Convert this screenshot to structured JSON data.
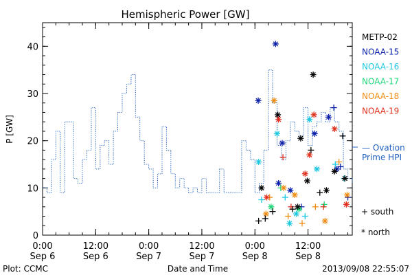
{
  "chart_data": {
    "type": "line",
    "title": "Hemispheric Power [GW]",
    "ylabel": "P [GW]",
    "xlabel": "Date and Time",
    "ylim": [
      0,
      45
    ],
    "yticks": [
      0,
      10,
      20,
      30,
      40
    ],
    "xlim": [
      "2013-09-06 00:00",
      "2013-09-08 22:00"
    ],
    "xticks": [
      {
        "x": "2013-09-06 00:00",
        "time": "0:00",
        "date": "Sep 6"
      },
      {
        "x": "2013-09-06 12:00",
        "time": "12:00",
        "date": "Sep 6"
      },
      {
        "x": "2013-09-07 00:00",
        "time": "0:00",
        "date": "Sep 7"
      },
      {
        "x": "2013-09-07 12:00",
        "time": "12:00",
        "date": "Sep 7"
      },
      {
        "x": "2013-09-08 00:00",
        "time": "0:00",
        "date": "Sep 8"
      },
      {
        "x": "2013-09-08 12:00",
        "time": "12:00",
        "date": "Sep 8"
      }
    ],
    "ovation": {
      "name": "Ovation Prime HPI",
      "legend_line1": "— Ovation",
      "legend_line2": "Prime HPI",
      "color": "#1f5fbf",
      "x": [
        "2013-09-06 00:00",
        "2013-09-06 01:00",
        "2013-09-06 02:00",
        "2013-09-06 03:00",
        "2013-09-06 04:00",
        "2013-09-06 05:00",
        "2013-09-06 06:00",
        "2013-09-06 07:00",
        "2013-09-06 08:00",
        "2013-09-06 09:00",
        "2013-09-06 10:00",
        "2013-09-06 11:00",
        "2013-09-06 12:00",
        "2013-09-06 13:00",
        "2013-09-06 14:00",
        "2013-09-06 15:00",
        "2013-09-06 16:00",
        "2013-09-06 17:00",
        "2013-09-06 18:00",
        "2013-09-06 19:00",
        "2013-09-06 20:00",
        "2013-09-06 21:00",
        "2013-09-06 22:00",
        "2013-09-06 23:00",
        "2013-09-07 00:00",
        "2013-09-07 01:00",
        "2013-09-07 02:00",
        "2013-09-07 03:00",
        "2013-09-07 04:00",
        "2013-09-07 05:00",
        "2013-09-07 06:00",
        "2013-09-07 07:00",
        "2013-09-07 08:00",
        "2013-09-07 09:00",
        "2013-09-07 10:00",
        "2013-09-07 11:00",
        "2013-09-07 12:00",
        "2013-09-07 13:00",
        "2013-09-07 14:00",
        "2013-09-07 15:00",
        "2013-09-07 16:00",
        "2013-09-07 17:00",
        "2013-09-07 18:00",
        "2013-09-07 19:00",
        "2013-09-07 20:00",
        "2013-09-07 21:00",
        "2013-09-07 22:00",
        "2013-09-07 23:00",
        "2013-09-08 00:00",
        "2013-09-08 01:00",
        "2013-09-08 02:00",
        "2013-09-08 03:00",
        "2013-09-08 04:00",
        "2013-09-08 05:00",
        "2013-09-08 06:00",
        "2013-09-08 07:00",
        "2013-09-08 08:00",
        "2013-09-08 09:00",
        "2013-09-08 10:00",
        "2013-09-08 11:00",
        "2013-09-08 12:00",
        "2013-09-08 13:00",
        "2013-09-08 14:00",
        "2013-09-08 15:00",
        "2013-09-08 16:00",
        "2013-09-08 17:00",
        "2013-09-08 18:00",
        "2013-09-08 19:00",
        "2013-09-08 20:00",
        "2013-09-08 21:00",
        "2013-09-08 22:00"
      ],
      "y": [
        10,
        9,
        16,
        22,
        9,
        24,
        24,
        12,
        11,
        16,
        18,
        27,
        14,
        19,
        20,
        15,
        22,
        26,
        30,
        32,
        34,
        25,
        20,
        15,
        14,
        10,
        13,
        23,
        18,
        13,
        10,
        12,
        10,
        9,
        10,
        9,
        12,
        9,
        9,
        9,
        14,
        9,
        9,
        9,
        9,
        20,
        18,
        16,
        9,
        11,
        18,
        35,
        28,
        19,
        16,
        20,
        24,
        22,
        21,
        27,
        19,
        23,
        24,
        26,
        24,
        27,
        24,
        22,
        14,
        12,
        11
      ]
    },
    "satellites": [
      {
        "name": "METP-02",
        "color": "#000000"
      },
      {
        "name": "NOAA-15",
        "color": "#0a1ea8"
      },
      {
        "name": "NOAA-16",
        "color": "#1ec8e0"
      },
      {
        "name": "NOAA-17",
        "color": "#1fd67a"
      },
      {
        "name": "NOAA-18",
        "color": "#f08c12"
      },
      {
        "name": "NOAA-19",
        "color": "#e0301e"
      }
    ],
    "symbols": {
      "south": "+ south",
      "north": "* north"
    },
    "points": [
      {
        "sat": "NOAA-15",
        "hemi": "north",
        "x": "2013-09-08 00:45",
        "y": 28.5
      },
      {
        "sat": "NOAA-15",
        "hemi": "north",
        "x": "2013-09-08 04:40",
        "y": 40.5
      },
      {
        "sat": "NOAA-15",
        "hemi": "north",
        "x": "2013-09-08 06:10",
        "y": 19.5
      },
      {
        "sat": "NOAA-15",
        "hemi": "north",
        "x": "2013-09-08 05:20",
        "y": 11.0
      },
      {
        "sat": "NOAA-15",
        "hemi": "north",
        "x": "2013-09-08 08:00",
        "y": 9.5
      },
      {
        "sat": "NOAA-15",
        "hemi": "north",
        "x": "2013-09-08 13:30",
        "y": 21.5
      },
      {
        "sat": "NOAA-15",
        "hemi": "north",
        "x": "2013-09-08 16:40",
        "y": 25.0
      },
      {
        "sat": "NOAA-15",
        "hemi": "north",
        "x": "2013-09-08 18:30",
        "y": 14.0
      },
      {
        "sat": "NOAA-15",
        "hemi": "south",
        "x": "2013-09-08 17:50",
        "y": 27.0
      },
      {
        "sat": "NOAA-15",
        "hemi": "south",
        "x": "2013-09-08 19:20",
        "y": 14.5
      },
      {
        "sat": "NOAA-15",
        "hemi": "south",
        "x": "2013-09-08 10:30",
        "y": 6.0
      },
      {
        "sat": "NOAA-15",
        "hemi": "south",
        "x": "2013-09-08 21:00",
        "y": 8.0
      },
      {
        "sat": "NOAA-16",
        "hemi": "north",
        "x": "2013-09-08 00:50",
        "y": 15.5
      },
      {
        "sat": "NOAA-16",
        "hemi": "north",
        "x": "2013-09-08 05:00",
        "y": 21.5
      },
      {
        "sat": "NOAA-16",
        "hemi": "north",
        "x": "2013-09-08 12:20",
        "y": 24.5
      },
      {
        "sat": "NOAA-16",
        "hemi": "north",
        "x": "2013-09-08 14:00",
        "y": 14.0
      },
      {
        "sat": "NOAA-16",
        "hemi": "north",
        "x": "2013-09-08 07:50",
        "y": 2.5
      },
      {
        "sat": "NOAA-16",
        "hemi": "north",
        "x": "2013-09-08 09:20",
        "y": 4.5
      },
      {
        "sat": "NOAA-16",
        "hemi": "south",
        "x": "2013-09-08 01:30",
        "y": 7.5
      },
      {
        "sat": "NOAA-16",
        "hemi": "south",
        "x": "2013-09-08 06:50",
        "y": 8.0
      },
      {
        "sat": "NOAA-16",
        "hemi": "south",
        "x": "2013-09-08 11:20",
        "y": 4.0
      },
      {
        "sat": "NOAA-16",
        "hemi": "south",
        "x": "2013-09-08 18:10",
        "y": 15.0
      },
      {
        "sat": "NOAA-16",
        "hemi": "south",
        "x": "2013-09-08 20:10",
        "y": 12.0
      },
      {
        "sat": "NOAA-17",
        "hemi": "north",
        "x": "2013-09-08 03:40",
        "y": 6.0
      },
      {
        "sat": "NOAA-17",
        "hemi": "north",
        "x": "2013-09-08 10:00",
        "y": 5.5
      },
      {
        "sat": "NOAA-17",
        "hemi": "south",
        "x": "2013-09-08 05:50",
        "y": 10.0
      },
      {
        "sat": "NOAA-17",
        "hemi": "south",
        "x": "2013-09-08 15:40",
        "y": 6.5
      },
      {
        "sat": "NOAA-18",
        "hemi": "north",
        "x": "2013-09-08 04:20",
        "y": 28.5
      },
      {
        "sat": "NOAA-18",
        "hemi": "north",
        "x": "2013-09-08 02:30",
        "y": 4.5
      },
      {
        "sat": "NOAA-18",
        "hemi": "north",
        "x": "2013-09-08 06:30",
        "y": 10.0
      },
      {
        "sat": "NOAA-18",
        "hemi": "north",
        "x": "2013-09-08 09:00",
        "y": 8.5
      },
      {
        "sat": "NOAA-18",
        "hemi": "north",
        "x": "2013-09-08 15:50",
        "y": 3.0
      },
      {
        "sat": "NOAA-18",
        "hemi": "north",
        "x": "2013-09-08 20:50",
        "y": 8.5
      },
      {
        "sat": "NOAA-18",
        "hemi": "south",
        "x": "2013-09-08 03:20",
        "y": 8.0
      },
      {
        "sat": "NOAA-18",
        "hemi": "south",
        "x": "2013-09-08 07:30",
        "y": 4.0
      },
      {
        "sat": "NOAA-18",
        "hemi": "south",
        "x": "2013-09-08 10:40",
        "y": 2.5
      },
      {
        "sat": "NOAA-18",
        "hemi": "south",
        "x": "2013-09-08 13:40",
        "y": 6.0
      },
      {
        "sat": "NOAA-18",
        "hemi": "south",
        "x": "2013-09-08 19:00",
        "y": 15.5
      },
      {
        "sat": "NOAA-19",
        "hemi": "north",
        "x": "2013-09-08 05:20",
        "y": 24.5
      },
      {
        "sat": "NOAA-19",
        "hemi": "north",
        "x": "2013-09-08 13:20",
        "y": 25.5
      },
      {
        "sat": "NOAA-19",
        "hemi": "north",
        "x": "2013-09-08 11:20",
        "y": 13.0
      },
      {
        "sat": "NOAA-19",
        "hemi": "north",
        "x": "2013-09-08 12:20",
        "y": 17.0
      },
      {
        "sat": "NOAA-19",
        "hemi": "north",
        "x": "2013-09-08 18:00",
        "y": 22.5
      },
      {
        "sat": "NOAA-19",
        "hemi": "north",
        "x": "2013-09-08 20:40",
        "y": 6.5
      },
      {
        "sat": "NOAA-19",
        "hemi": "north",
        "x": "2013-09-08 02:40",
        "y": 8.0
      },
      {
        "sat": "NOAA-19",
        "hemi": "south",
        "x": "2013-09-08 06:20",
        "y": 16.5
      },
      {
        "sat": "NOAA-19",
        "hemi": "south",
        "x": "2013-09-08 15:30",
        "y": 6.0
      },
      {
        "sat": "NOAA-19",
        "hemi": "south",
        "x": "2013-09-08 08:10",
        "y": 6.0
      },
      {
        "sat": "METP-02",
        "hemi": "north",
        "x": "2013-09-08 05:10",
        "y": 25.5
      },
      {
        "sat": "METP-02",
        "hemi": "north",
        "x": "2013-09-08 13:10",
        "y": 34.0
      },
      {
        "sat": "METP-02",
        "hemi": "north",
        "x": "2013-09-08 10:20",
        "y": 20.5
      },
      {
        "sat": "METP-02",
        "hemi": "north",
        "x": "2013-09-08 11:50",
        "y": 11.5
      },
      {
        "sat": "METP-02",
        "hemi": "north",
        "x": "2013-09-08 01:30",
        "y": 10.0
      },
      {
        "sat": "METP-02",
        "hemi": "north",
        "x": "2013-09-08 09:40",
        "y": 6.0
      },
      {
        "sat": "METP-02",
        "hemi": "north",
        "x": "2013-09-08 16:10",
        "y": 9.5
      },
      {
        "sat": "METP-02",
        "hemi": "north",
        "x": "2013-09-08 18:00",
        "y": 13.5
      },
      {
        "sat": "METP-02",
        "hemi": "north",
        "x": "2013-09-08 20:20",
        "y": 12.0
      },
      {
        "sat": "METP-02",
        "hemi": "south",
        "x": "2013-09-08 00:50",
        "y": 3.0
      },
      {
        "sat": "METP-02",
        "hemi": "south",
        "x": "2013-09-08 02:20",
        "y": 3.5
      },
      {
        "sat": "METP-02",
        "hemi": "south",
        "x": "2013-09-08 04:00",
        "y": 5.0
      },
      {
        "sat": "METP-02",
        "hemi": "south",
        "x": "2013-09-08 08:30",
        "y": 5.5
      },
      {
        "sat": "METP-02",
        "hemi": "south",
        "x": "2013-09-08 12:40",
        "y": 18.0
      },
      {
        "sat": "METP-02",
        "hemi": "south",
        "x": "2013-09-08 14:40",
        "y": 9.0
      },
      {
        "sat": "METP-02",
        "hemi": "south",
        "x": "2013-09-08 19:50",
        "y": 21.0
      }
    ]
  },
  "footer": {
    "left": "Plot: CCMC",
    "right": "2013/09/08 22:55:07"
  }
}
